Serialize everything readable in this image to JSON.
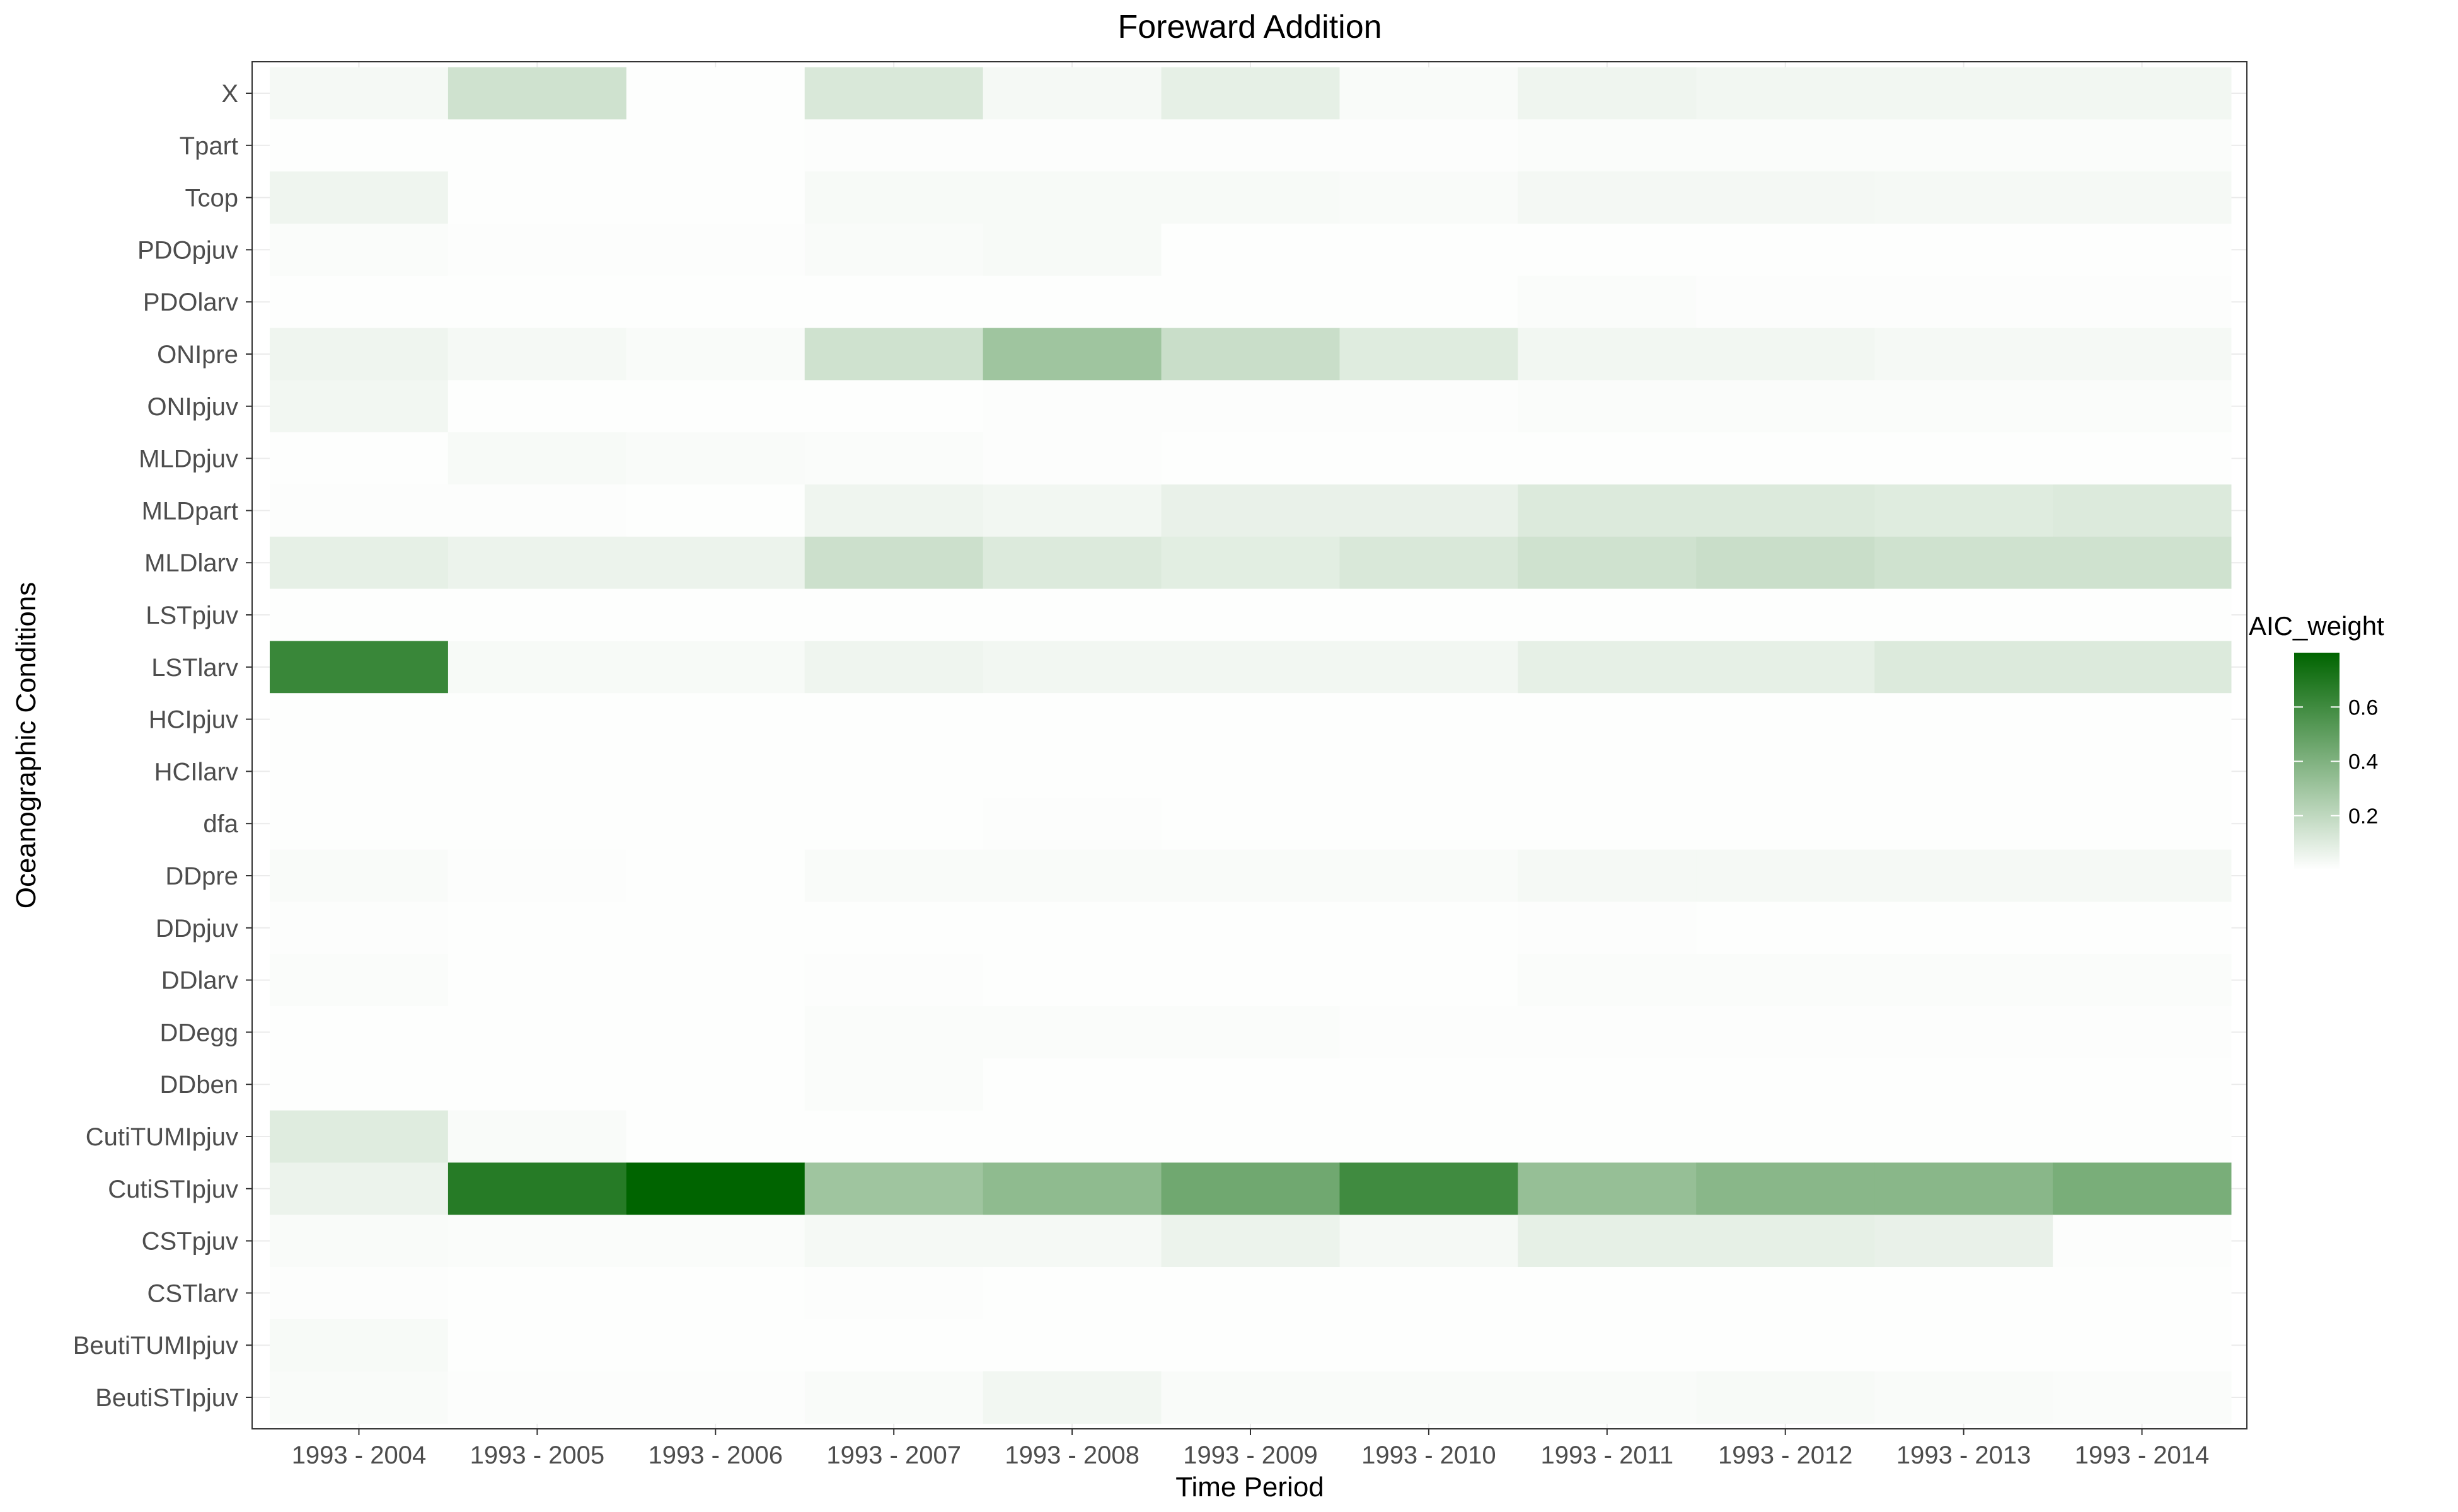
{
  "chart_data": {
    "type": "heatmap",
    "title": "Foreward Addition",
    "xlabel": "Time Period",
    "ylabel": "Oceanographic Conditions",
    "x": [
      "1993 - 2004",
      "1993 - 2005",
      "1993 - 2006",
      "1993 - 2007",
      "1993 - 2008",
      "1993 - 2009",
      "1993 - 2010",
      "1993 - 2011",
      "1993 - 2012",
      "1993 - 2013",
      "1993 - 2014"
    ],
    "y": [
      "X",
      "Tpart",
      "Tcop",
      "PDOpjuv",
      "PDOlarv",
      "ONIpre",
      "ONIpjuv",
      "MLDpjuv",
      "MLDpart",
      "MLDlarv",
      "LSTpjuv",
      "LSTlarv",
      "HCIpjuv",
      "HCIlarv",
      "dfa",
      "DDpre",
      "DDpjuv",
      "DDlarv",
      "DDegg",
      "DDben",
      "CutiTUMIpjuv",
      "CutiSTIpjuv",
      "CSTpjuv",
      "CSTlarv",
      "BeutiTUMIpjuv",
      "BeutiSTIpjuv"
    ],
    "values": [
      [
        0.03,
        0.15,
        0.005,
        0.12,
        0.03,
        0.08,
        0.02,
        0.05,
        0.04,
        0.04,
        0.04
      ],
      [
        0.005,
        0.005,
        0.005,
        0.01,
        0.01,
        0.01,
        0.01,
        0.015,
        0.015,
        0.015,
        0.015
      ],
      [
        0.05,
        0.005,
        0.005,
        0.025,
        0.025,
        0.025,
        0.02,
        0.035,
        0.035,
        0.03,
        0.03
      ],
      [
        0.015,
        0.01,
        0.01,
        0.02,
        0.025,
        0.005,
        0.005,
        0.005,
        0.005,
        0.005,
        0.005
      ],
      [
        0.005,
        0.005,
        0.005,
        0.005,
        0.005,
        0.005,
        0.005,
        0.015,
        0.01,
        0.01,
        0.01
      ],
      [
        0.05,
        0.03,
        0.02,
        0.15,
        0.3,
        0.17,
        0.1,
        0.04,
        0.04,
        0.03,
        0.03
      ],
      [
        0.04,
        0.005,
        0.005,
        0.005,
        0.01,
        0.01,
        0.01,
        0.015,
        0.015,
        0.015,
        0.015
      ],
      [
        0.005,
        0.025,
        0.02,
        0.015,
        0.01,
        0.005,
        0.005,
        0.005,
        0.005,
        0.005,
        0.005
      ],
      [
        0.01,
        0.01,
        0.005,
        0.05,
        0.04,
        0.07,
        0.07,
        0.11,
        0.11,
        0.1,
        0.11
      ],
      [
        0.08,
        0.06,
        0.06,
        0.16,
        0.11,
        0.09,
        0.12,
        0.15,
        0.17,
        0.15,
        0.15
      ],
      [
        0.005,
        0.005,
        0.005,
        0.005,
        0.005,
        0.005,
        0.005,
        0.005,
        0.005,
        0.005,
        0.005
      ],
      [
        0.62,
        0.025,
        0.025,
        0.05,
        0.04,
        0.04,
        0.04,
        0.08,
        0.08,
        0.11,
        0.11
      ],
      [
        0.005,
        0.005,
        0.005,
        0.005,
        0.005,
        0.005,
        0.005,
        0.005,
        0.005,
        0.005,
        0.005
      ],
      [
        0.005,
        0.005,
        0.005,
        0.005,
        0.005,
        0.005,
        0.005,
        0.005,
        0.005,
        0.005,
        0.005
      ],
      [
        0.005,
        0.005,
        0.005,
        0.005,
        0.01,
        0.005,
        0.005,
        0.005,
        0.005,
        0.005,
        0.005
      ],
      [
        0.02,
        0.01,
        0.005,
        0.02,
        0.02,
        0.02,
        0.02,
        0.03,
        0.03,
        0.03,
        0.03
      ],
      [
        0.01,
        0.005,
        0.005,
        0.005,
        0.005,
        0.005,
        0.005,
        0.01,
        0.005,
        0.005,
        0.005
      ],
      [
        0.015,
        0.005,
        0.005,
        0.01,
        0.005,
        0.005,
        0.005,
        0.015,
        0.015,
        0.015,
        0.015
      ],
      [
        0.005,
        0.005,
        0.005,
        0.015,
        0.015,
        0.015,
        0.01,
        0.01,
        0.01,
        0.01,
        0.01
      ],
      [
        0.005,
        0.005,
        0.005,
        0.015,
        0.005,
        0.005,
        0.005,
        0.005,
        0.005,
        0.005,
        0.005
      ],
      [
        0.1,
        0.02,
        0.005,
        0.005,
        0.005,
        0.005,
        0.005,
        0.005,
        0.005,
        0.005,
        0.005
      ],
      [
        0.06,
        0.68,
        0.8,
        0.3,
        0.35,
        0.45,
        0.6,
        0.33,
        0.37,
        0.37,
        0.42
      ],
      [
        0.02,
        0.015,
        0.015,
        0.03,
        0.03,
        0.06,
        0.03,
        0.08,
        0.08,
        0.07,
        0.01
      ],
      [
        0.01,
        0.005,
        0.005,
        0.01,
        0.005,
        0.005,
        0.005,
        0.005,
        0.005,
        0.005,
        0.005
      ],
      [
        0.025,
        0.005,
        0.005,
        0.005,
        0.005,
        0.005,
        0.005,
        0.005,
        0.005,
        0.005,
        0.005
      ],
      [
        0.02,
        0.01,
        0.01,
        0.02,
        0.04,
        0.02,
        0.02,
        0.02,
        0.025,
        0.02,
        0.015
      ]
    ],
    "legend": {
      "title": "AIC_weight",
      "ticks": [
        0.2,
        0.4,
        0.6
      ],
      "tick_labels": [
        "0.2",
        "0.4",
        "0.6"
      ],
      "range": [
        0,
        0.8
      ],
      "low_color": "#ffffff",
      "high_color": "#006400",
      "placement": "right"
    },
    "grid": true
  }
}
